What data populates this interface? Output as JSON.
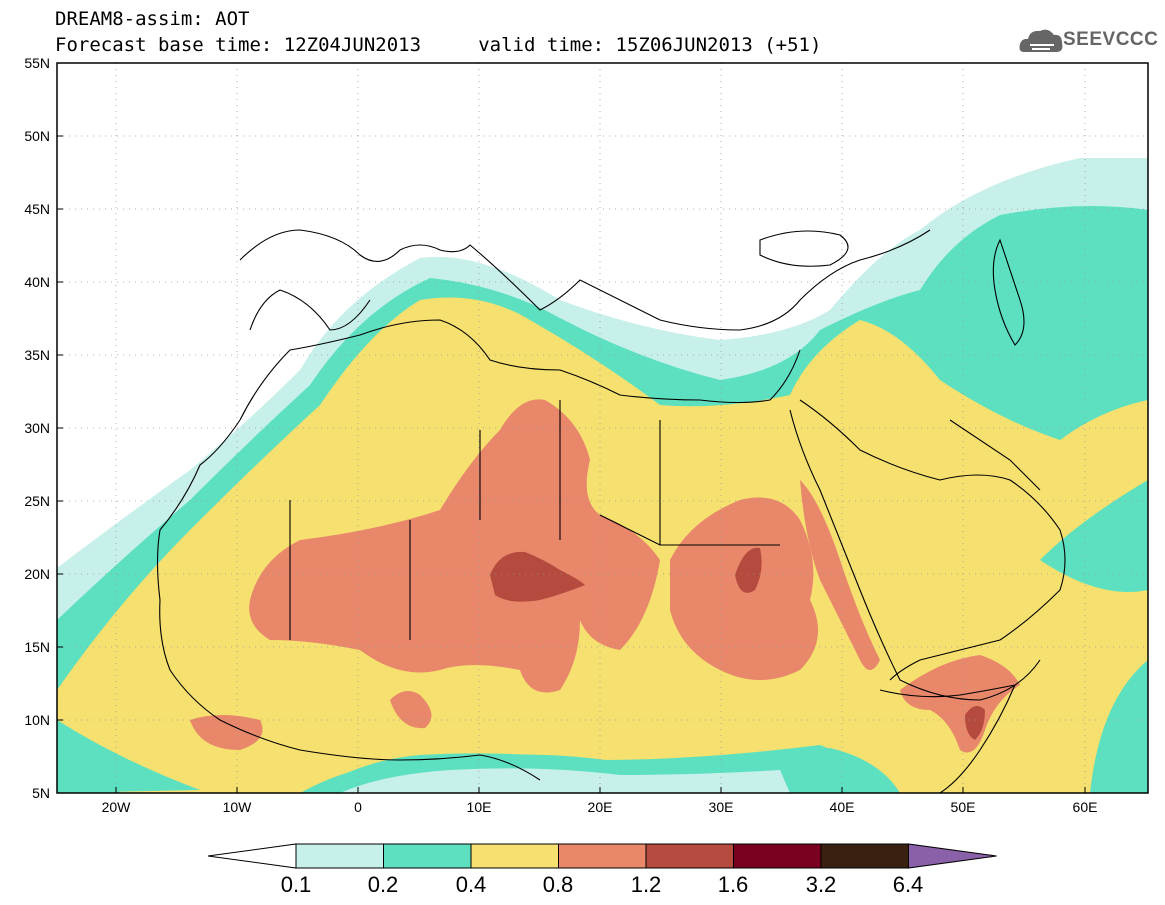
{
  "header": {
    "title_line1": "DREAM8-assim: AOT",
    "title_line2": "Forecast base time: 12Z04JUN2013     valid time: 15Z06JUN2013 (+51)",
    "logo_text": "SEEVCCC"
  },
  "map": {
    "lat_labels": [
      "55N",
      "50N",
      "45N",
      "40N",
      "35N",
      "30N",
      "25N",
      "20N",
      "15N",
      "10N",
      "5N"
    ],
    "lon_labels": [
      "20W",
      "10W",
      "0",
      "10E",
      "20E",
      "30E",
      "40E",
      "50E",
      "60E"
    ],
    "lon_range": [
      -25,
      65
    ],
    "lat_range": [
      5,
      55
    ]
  },
  "colorbar": {
    "labels": [
      "0.1",
      "0.2",
      "0.4",
      "0.8",
      "1.2",
      "1.6",
      "3.2",
      "6.4"
    ],
    "colors": [
      "#ffffff",
      "#c8f0ea",
      "#5ce0c0",
      "#f5e070",
      "#e8876a",
      "#b54a3e",
      "#7a0020",
      "#3a2010",
      "#8a60a8"
    ]
  },
  "fields": {
    "colors": {
      "c01": "#c8f0ea",
      "c02": "#5ce0c0",
      "c04": "#f5e070",
      "c08": "#e8876a",
      "c12": "#b54a3e"
    }
  }
}
